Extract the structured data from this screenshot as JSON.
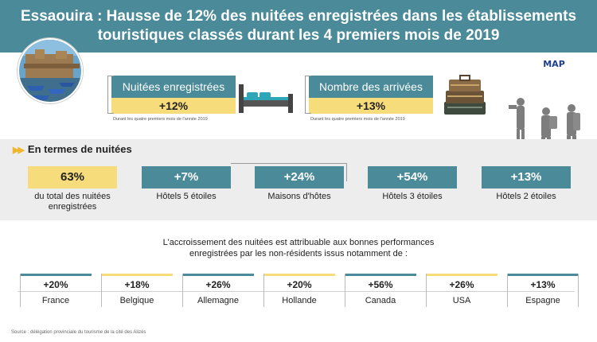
{
  "header": {
    "title_line1": "Essaouira : Hausse de 12% des nuitées enregistrées dans les établissements",
    "title_line2": "touristiques classés durant les 4 premiers mois de 2019"
  },
  "logo": {
    "text": "MAP"
  },
  "stats": [
    {
      "label": "Nuitées enregistrées",
      "value": "+12%",
      "note": "Durant les quatre premiers mois de l'année 2019",
      "icon": "bed-icon"
    },
    {
      "label": "Nombre des arrivées",
      "value": "+13%",
      "note": "Durant les quatre premiers mois de l'année 2019",
      "icon": "luggage-icon"
    }
  ],
  "nights": {
    "title": "En termes de nuitées",
    "items": [
      {
        "value": "63%",
        "label": "du total des nuitées enregistrées",
        "highlight": true
      },
      {
        "value": "+7%",
        "label": "Hôtels 5 étoiles"
      },
      {
        "value": "+24%",
        "label": "Maisons d'hôtes"
      },
      {
        "value": "+54%",
        "label": "Hôtels 3 étoiles"
      },
      {
        "value": "+13%",
        "label": "Hôtels 2 étoiles"
      }
    ]
  },
  "countries": {
    "intro_line1": "L'accroissement des nuitées est attribuable aux bonnes performances",
    "intro_line2": "enregistrées par les non-résidents issus notamment de :",
    "items": [
      {
        "value": "+20%",
        "name": "France"
      },
      {
        "value": "+18%",
        "name": "Belgique"
      },
      {
        "value": "+26%",
        "name": "Allemagne"
      },
      {
        "value": "+20%",
        "name": "Hollande"
      },
      {
        "value": "+56%",
        "name": "Canada"
      },
      {
        "value": "+26%",
        "name": "USA"
      },
      {
        "value": "+13%",
        "name": "Espagne"
      }
    ]
  },
  "source": "Source : délégation provinciale du tourisme de la cité des Alizés",
  "colors": {
    "teal": "#4a8a99",
    "gold": "#f7dc7b",
    "band": "#ededed"
  }
}
